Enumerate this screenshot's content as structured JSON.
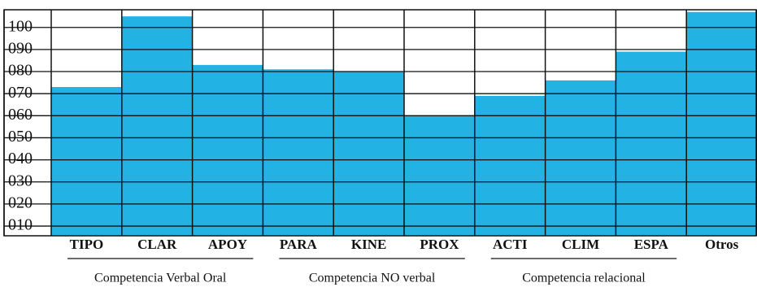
{
  "chart_data": {
    "type": "bar",
    "categories": [
      "TIPO",
      "CLAR",
      "APOY",
      "PARA",
      "KINE",
      "PROX",
      "ACTI",
      "CLIM",
      "ESPA",
      "Otros"
    ],
    "values": [
      73,
      105,
      83,
      81,
      80,
      60,
      69,
      76,
      89,
      107
    ],
    "color": "#22b2e3",
    "ylim": [
      5.6,
      108
    ],
    "yticks": [
      {
        "value": 10,
        "label": "010"
      },
      {
        "value": 20,
        "label": "020"
      },
      {
        "value": 30,
        "label": "030"
      },
      {
        "value": 40,
        "label": "040"
      },
      {
        "value": 50,
        "label": "050"
      },
      {
        "value": 60,
        "label": "060"
      },
      {
        "value": 70,
        "label": "070"
      },
      {
        "value": 80,
        "label": "080"
      },
      {
        "value": 90,
        "label": "090"
      },
      100
    ],
    "grid": true,
    "group_labels": [
      "Competencia Verbal Oral",
      "Competencia NO verbal",
      "Competencia relacional"
    ]
  }
}
